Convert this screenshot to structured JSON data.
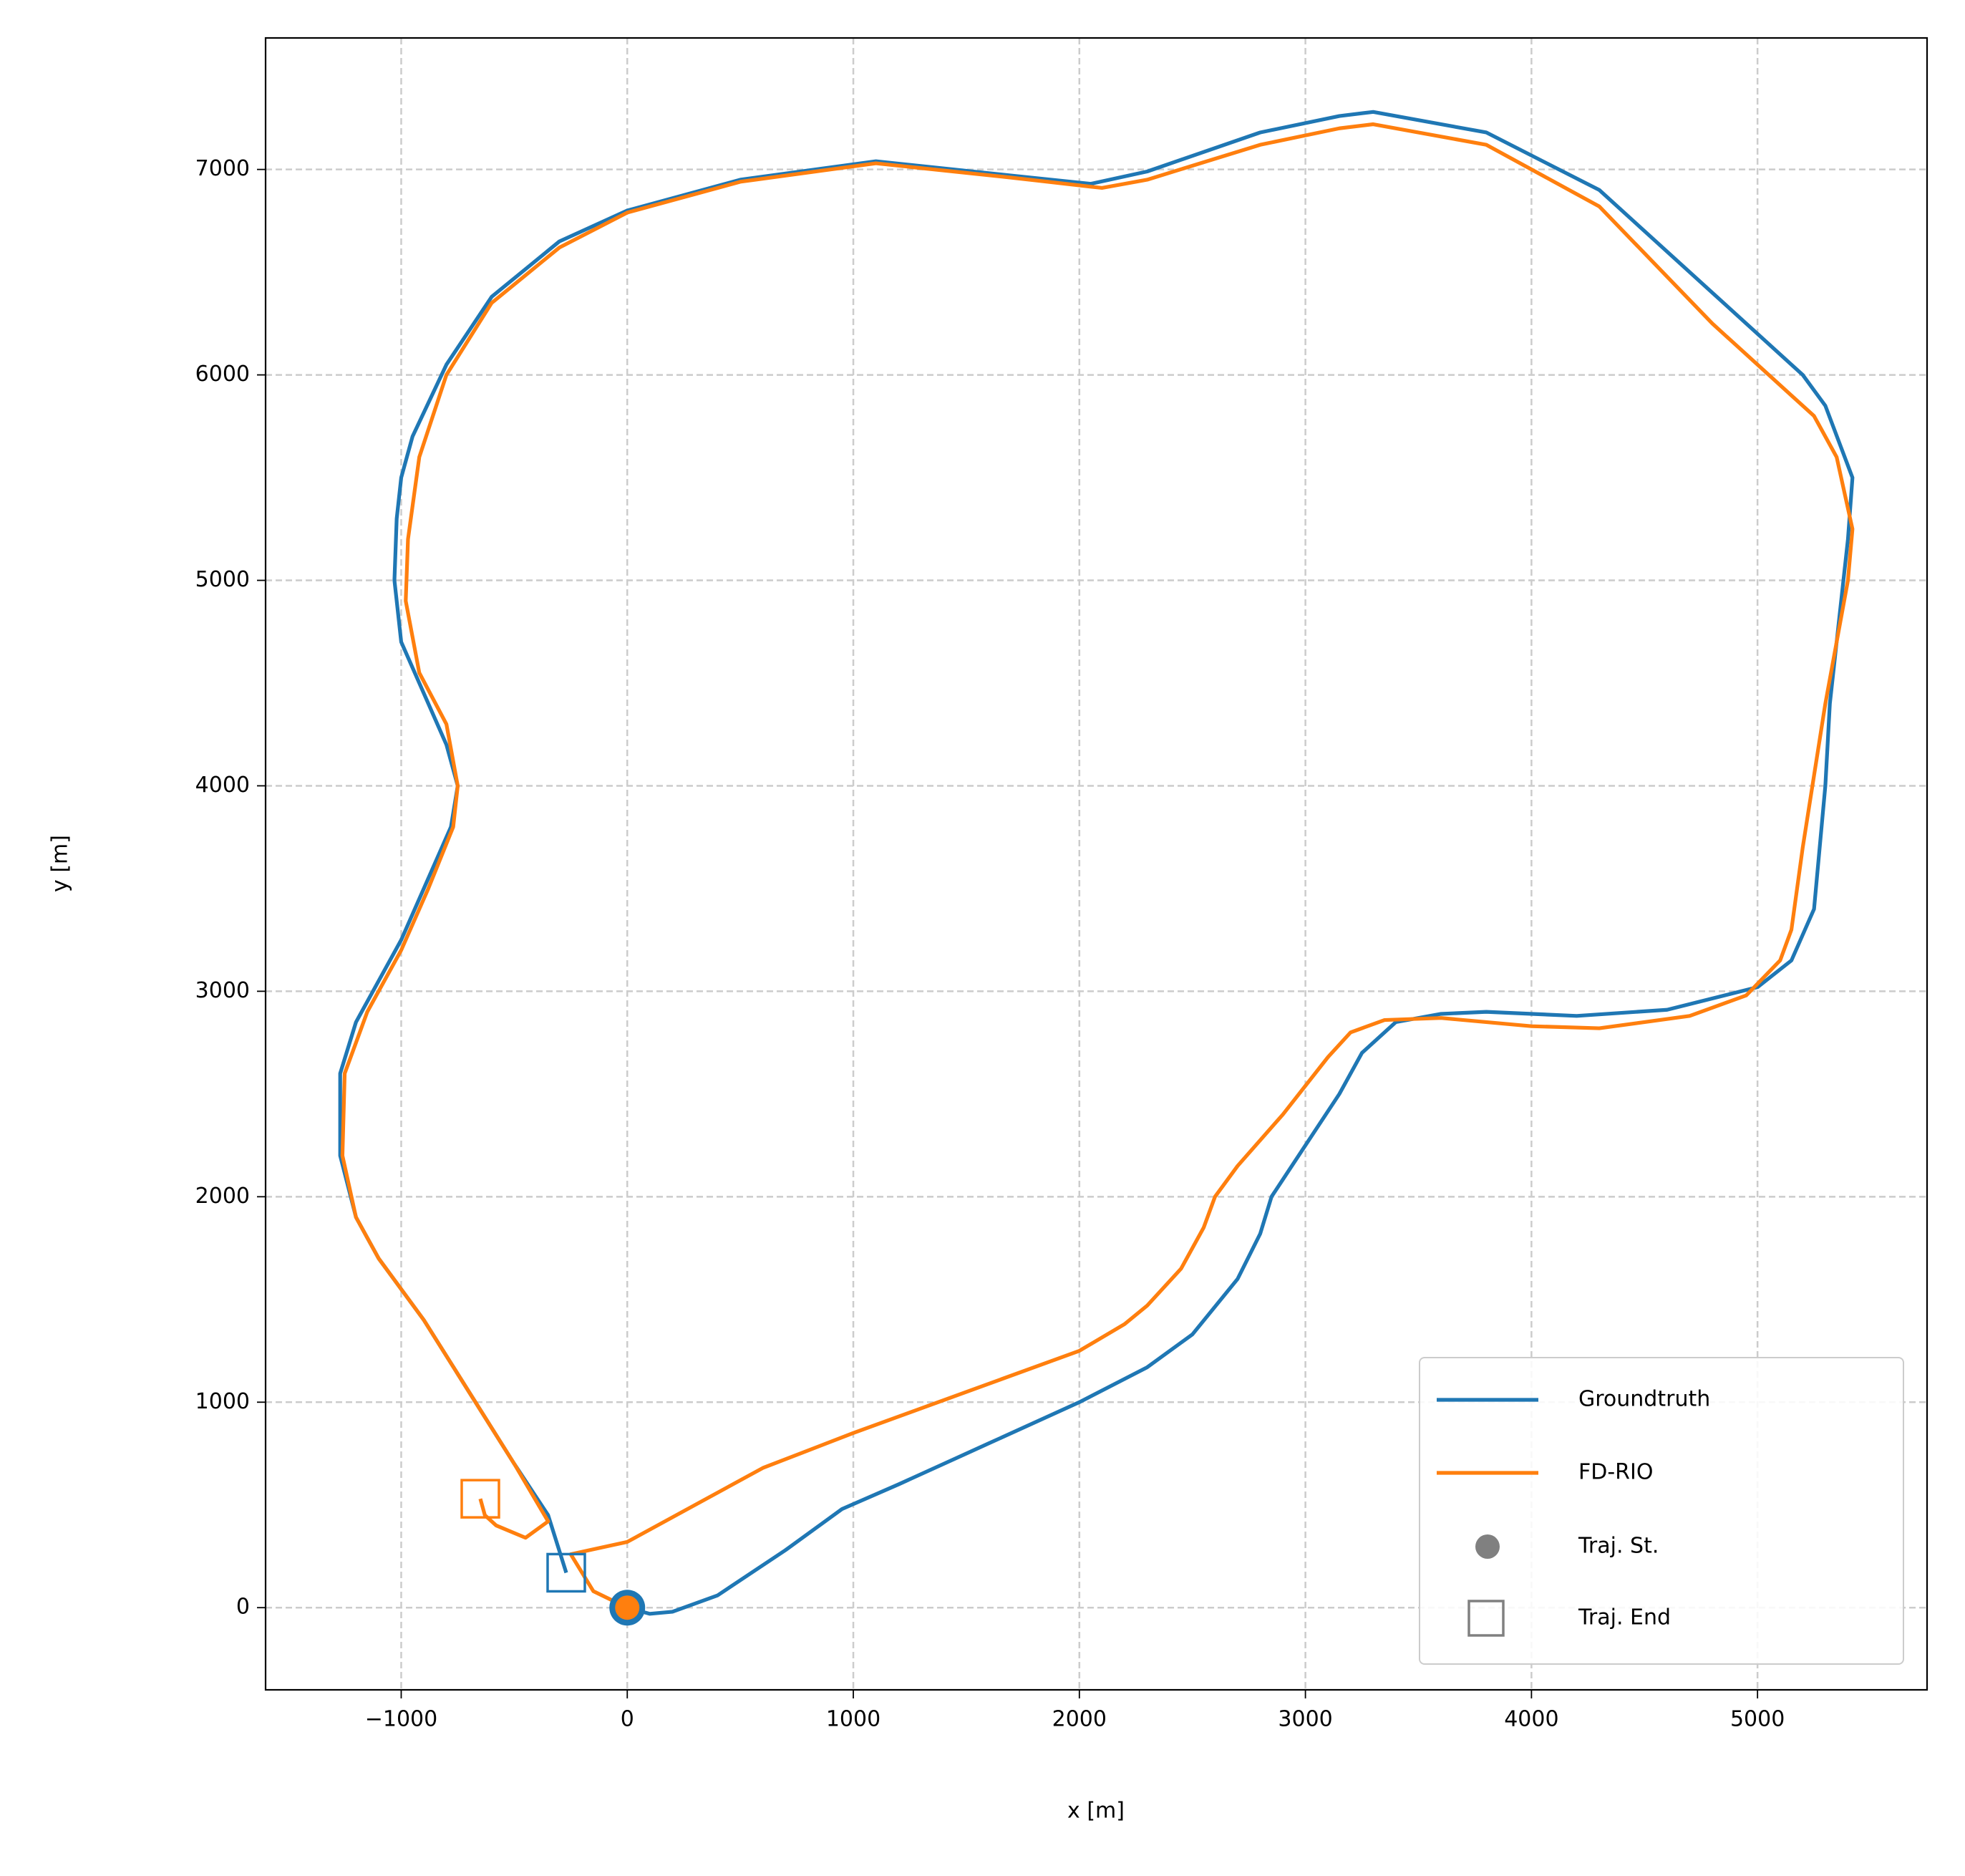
{
  "chart_data": {
    "type": "line",
    "xlabel": "x [m]",
    "ylabel": "y [m]",
    "xlim": [
      -1600,
      5750
    ],
    "ylim": [
      -400,
      7640
    ],
    "xticks": [
      {
        "value": -1000,
        "label": "−1000"
      },
      0,
      1000,
      2000,
      3000,
      4000,
      5000
    ],
    "yticks": [
      0,
      1000,
      2000,
      3000,
      4000,
      5000,
      6000,
      7000
    ],
    "grid": true,
    "legend": "lower right",
    "series": [
      {
        "name": "Groundtruth",
        "color": "#1f77b4",
        "x": [
          0,
          100,
          200,
          400,
          700,
          950,
          1200,
          1600,
          2000,
          2300,
          2500,
          2700,
          2800,
          2850,
          3000,
          3150,
          3250,
          3400,
          3600,
          3800,
          4200,
          4600,
          5000,
          5150,
          5250,
          5300,
          5320,
          5400,
          5420,
          5300,
          5200,
          4800,
          4300,
          3800,
          3300,
          3150,
          2800,
          2300,
          2050,
          1700,
          1100,
          500,
          0,
          -300,
          -600,
          -800,
          -950,
          -1000,
          -1020,
          -1030,
          -1000,
          -900,
          -800,
          -750,
          -780,
          -900,
          -1000,
          -1100,
          -1200,
          -1270,
          -1270,
          -1200,
          -1100,
          -900,
          -700,
          -500,
          -350,
          -270
        ],
        "values": [
          0,
          -30,
          -20,
          60,
          280,
          480,
          600,
          800,
          1000,
          1170,
          1330,
          1600,
          1820,
          2000,
          2250,
          2500,
          2700,
          2850,
          2890,
          2900,
          2880,
          2910,
          3020,
          3150,
          3400,
          4000,
          4400,
          5200,
          5500,
          5850,
          6000,
          6400,
          6900,
          7180,
          7280,
          7260,
          7180,
          6990,
          6930,
          6970,
          7040,
          6950,
          6800,
          6650,
          6380,
          6050,
          5700,
          5500,
          5300,
          5000,
          4700,
          4450,
          4200,
          4000,
          3800,
          3500,
          3250,
          3050,
          2850,
          2600,
          2200,
          1900,
          1700,
          1400,
          1050,
          700,
          450,
          170
        ],
        "start": {
          "x": 0,
          "y": 0
        },
        "end": {
          "x": -270,
          "y": 170
        }
      },
      {
        "name": "FD-RIO",
        "color": "#ff7f0e",
        "x": [
          0,
          -150,
          -250,
          0,
          300,
          600,
          1000,
          1500,
          2000,
          2200,
          2300,
          2450,
          2550,
          2600,
          2700,
          2900,
          3100,
          3200,
          3350,
          3600,
          4000,
          4300,
          4700,
          4950,
          5100,
          5150,
          5200,
          5300,
          5400,
          5420,
          5350,
          5250,
          5150,
          4800,
          4300,
          3800,
          3300,
          3150,
          2800,
          2300,
          2100,
          1700,
          1100,
          500,
          0,
          -300,
          -600,
          -800,
          -920,
          -970,
          -980,
          -920,
          -800,
          -750,
          -770,
          -880,
          -1000,
          -1150,
          -1250,
          -1260,
          -1200,
          -1100,
          -900,
          -700,
          -500,
          -350,
          -450,
          -580,
          -630,
          -650
        ],
        "values": [
          0,
          80,
          260,
          320,
          500,
          680,
          850,
          1050,
          1250,
          1380,
          1470,
          1650,
          1850,
          2000,
          2150,
          2400,
          2680,
          2800,
          2860,
          2870,
          2830,
          2820,
          2880,
          2980,
          3150,
          3300,
          3700,
          4400,
          5000,
          5250,
          5600,
          5800,
          5900,
          6250,
          6820,
          7120,
          7220,
          7200,
          7120,
          6950,
          6910,
          6960,
          7030,
          6940,
          6790,
          6620,
          6350,
          6000,
          5600,
          5200,
          4900,
          4550,
          4300,
          4000,
          3800,
          3500,
          3200,
          2900,
          2600,
          2200,
          1900,
          1700,
          1400,
          1050,
          700,
          420,
          340,
          400,
          450,
          530
        ],
        "start": {
          "x": 0,
          "y": 0
        },
        "end": {
          "x": -650,
          "y": 530
        }
      }
    ],
    "legend_markers": [
      {
        "name": "Traj. St.",
        "color": "#808080",
        "marker": "circle"
      },
      {
        "name": "Traj. End",
        "color": "#808080",
        "marker": "square"
      }
    ]
  }
}
